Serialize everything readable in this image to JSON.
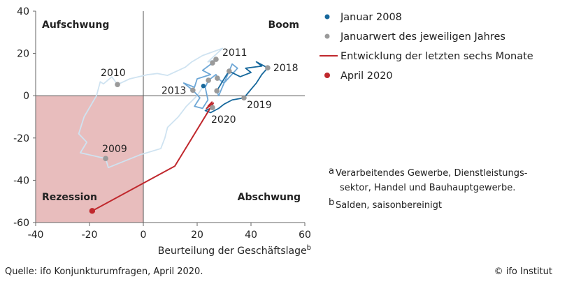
{
  "chart_data": {
    "type": "line",
    "title": "",
    "xlabel": "Beurteilung der Geschäftslage",
    "xlabel_sup": "b",
    "ylabel": "",
    "xlim": [
      -40,
      60
    ],
    "ylim": [
      -60,
      40
    ],
    "xticks": [
      -40,
      -20,
      0,
      20,
      40,
      60
    ],
    "yticks": [
      40,
      20,
      0,
      -20,
      -40,
      -60
    ],
    "grid": false,
    "legend_position": "right",
    "colors": {
      "path_2008_2010": "#cfe3f1",
      "path_2010_2014": "#6ea7d6",
      "path_2015_2020": "#17689c",
      "recent": "#c0282d",
      "jan_marker": "#9a9a9a",
      "start_marker": "#17689c",
      "april_marker": "#c0282d",
      "recession_fill": "#e8bdbd"
    },
    "quadrants": {
      "top_left": "Aufschwung",
      "top_right": "Boom",
      "bottom_left": "Rezession",
      "bottom_right": "Abschwung"
    },
    "series": [
      {
        "key": "path_2008_2010",
        "points": [
          [
            22.3,
            4.6
          ],
          [
            20,
            0
          ],
          [
            16,
            -5
          ],
          [
            13,
            -10
          ],
          [
            9,
            -15
          ],
          [
            8,
            -20
          ],
          [
            6.5,
            -25
          ],
          [
            -1.3,
            -28
          ],
          [
            -13,
            -34
          ],
          [
            -14,
            -29.7
          ],
          [
            -23.4,
            -27
          ],
          [
            -21,
            -22
          ],
          [
            -24,
            -18
          ],
          [
            -22,
            -10
          ],
          [
            -17.4,
            0
          ],
          [
            -16,
            6.6
          ],
          [
            -14.8,
            5.6
          ],
          [
            -11.7,
            8.9
          ],
          [
            -9.6,
            5.3
          ],
          [
            -5,
            8
          ],
          [
            1.3,
            9.9
          ],
          [
            5.2,
            10.5
          ],
          [
            9,
            9.6
          ],
          [
            15.6,
            13.5
          ],
          [
            18,
            16
          ],
          [
            22,
            19
          ],
          [
            29.4,
            22.4
          ],
          [
            24,
            16
          ],
          [
            27,
            17.2
          ]
        ]
      },
      {
        "key": "path_2010_2014",
        "points": [
          [
            27,
            17.2
          ],
          [
            25.7,
            15.5
          ],
          [
            22,
            12
          ],
          [
            25,
            10
          ],
          [
            20,
            8
          ],
          [
            19,
            4
          ],
          [
            15,
            6
          ],
          [
            18.4,
            2.6
          ],
          [
            21,
            -1
          ],
          [
            19,
            -5
          ],
          [
            22,
            -6
          ],
          [
            24,
            -2
          ],
          [
            23,
            4
          ],
          [
            24.2,
            7.3
          ],
          [
            27,
            10
          ],
          [
            27.5,
            8.3
          ],
          [
            30,
            6
          ],
          [
            31.9,
            11.6
          ],
          [
            33,
            15
          ],
          [
            35,
            13
          ],
          [
            30,
            6
          ],
          [
            28,
            0
          ],
          [
            27.3,
            2.3
          ]
        ]
      },
      {
        "key": "path_2015_2020",
        "points": [
          [
            27.3,
            2.3
          ],
          [
            30,
            8
          ],
          [
            32,
            12
          ],
          [
            31.9,
            11.6
          ],
          [
            36,
            9
          ],
          [
            40,
            11
          ],
          [
            38,
            13
          ],
          [
            44,
            14
          ],
          [
            42,
            16
          ],
          [
            46.2,
            13.2
          ],
          [
            44,
            10
          ],
          [
            42,
            6
          ],
          [
            40,
            3
          ],
          [
            37.4,
            -1
          ],
          [
            33,
            -2
          ],
          [
            30,
            -4
          ],
          [
            28,
            -6
          ],
          [
            25,
            -8
          ],
          [
            23,
            -7
          ],
          [
            25.7,
            -5.6
          ]
        ]
      },
      {
        "key": "recent",
        "name": "Entwicklung der letzten sechs Monate",
        "points": [
          [
            24,
            -5
          ],
          [
            25.5,
            -3
          ],
          [
            23.5,
            -6
          ],
          [
            26,
            -3.5
          ],
          [
            11.7,
            -33.3
          ],
          [
            -19,
            -54.5
          ]
        ]
      }
    ],
    "january_points": [
      {
        "label": "2009",
        "x": -14,
        "y": -29.7
      },
      {
        "label": "2010",
        "x": -9.6,
        "y": 5.3
      },
      {
        "label": "2011",
        "x": 27,
        "y": 17.2
      },
      {
        "label": "",
        "x": 25.7,
        "y": 15.5
      },
      {
        "label": "2013",
        "x": 18.4,
        "y": 2.6
      },
      {
        "label": "",
        "x": 24.2,
        "y": 7.3
      },
      {
        "label": "",
        "x": 27.5,
        "y": 8.3
      },
      {
        "label": "",
        "x": 31.9,
        "y": 11.6
      },
      {
        "label": "",
        "x": 27.3,
        "y": 2.3
      },
      {
        "label": "2018",
        "x": 46.2,
        "y": 13.2
      },
      {
        "label": "2019",
        "x": 37.4,
        "y": -1
      },
      {
        "label": "2020",
        "x": 25.7,
        "y": -5.6
      }
    ],
    "start_point": {
      "x": 22.3,
      "y": 4.6
    },
    "april_point": {
      "x": -19,
      "y": -54.5
    },
    "legend": [
      {
        "label": "Januar 2008",
        "kind": "dot",
        "color": "#17689c"
      },
      {
        "label": "Januarwert des jeweiligen Jahres",
        "kind": "dot",
        "color": "#9a9a9a"
      },
      {
        "label": "Entwicklung der letzten sechs Monate",
        "kind": "line",
        "color": "#c0282d"
      },
      {
        "label": "April 2020",
        "kind": "dot",
        "color": "#c0282d"
      }
    ]
  },
  "footnotes": {
    "a_mark": "a",
    "a_line1": "Verarbeitendes Gewerbe,  Dienstleistungs-",
    "a_line2": "sektor, Handel und Bauhauptgewerbe.",
    "b_mark": "b",
    "b_text": "Salden, saisonbereinigt"
  },
  "source": "Quelle: ifo Konjunkturumfragen, April 2020.",
  "copyright": "© ifo Institut"
}
